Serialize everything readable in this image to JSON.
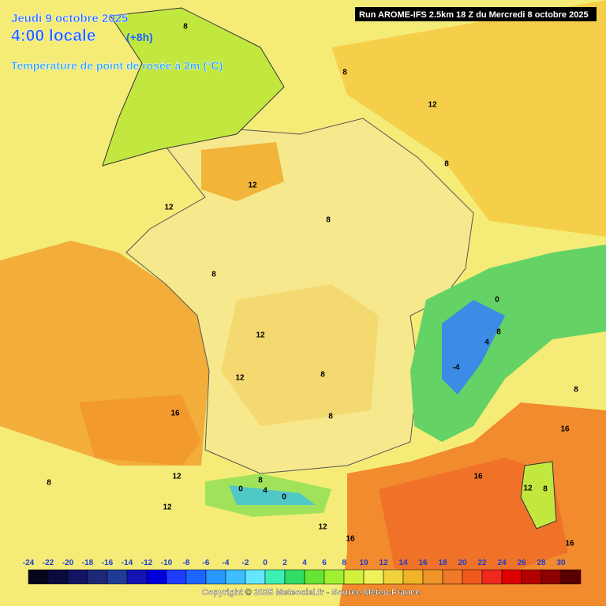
{
  "header": {
    "date": "Jeudi 9 octobre 2025",
    "time": "4:00 locale",
    "lead": "(+8h)",
    "parameter": "Température de point de rosée à 2m (°C)",
    "run": "Run AROME-IFS 2.5km 18 Z du Mercredi 8 octobre 2025"
  },
  "contour_labels": [
    8,
    8,
    12,
    8,
    12,
    12,
    8,
    8,
    0,
    8,
    4,
    -4,
    12,
    12,
    8,
    8,
    16,
    16,
    8,
    16,
    12,
    8,
    12,
    12,
    16,
    12,
    16,
    8,
    0,
    4,
    0,
    8
  ],
  "colorbar": {
    "ticks": [
      -24,
      -22,
      -20,
      -18,
      -16,
      -14,
      -12,
      -10,
      -8,
      -6,
      -4,
      -2,
      0,
      2,
      4,
      6,
      8,
      10,
      12,
      14,
      16,
      18,
      20,
      22,
      24,
      26,
      28,
      30
    ],
    "colors": [
      "#05051e",
      "#0a0a3c",
      "#141464",
      "#1e2878",
      "#1e3c96",
      "#1414b4",
      "#0000dc",
      "#1e3cff",
      "#1e64ff",
      "#2896ff",
      "#3cbeff",
      "#64e6ff",
      "#3cf0b4",
      "#32dc64",
      "#64e632",
      "#a0f032",
      "#d2f03c",
      "#f0f05a",
      "#f0d23c",
      "#f0b428",
      "#f09628",
      "#f07828",
      "#f05a1e",
      "#f0281e",
      "#dc0000",
      "#b40000",
      "#8c0000",
      "#5a0000"
    ]
  },
  "footer": {
    "copyright": "Copyright © 2025 Meteociel.fr - Source Meteo-France"
  }
}
